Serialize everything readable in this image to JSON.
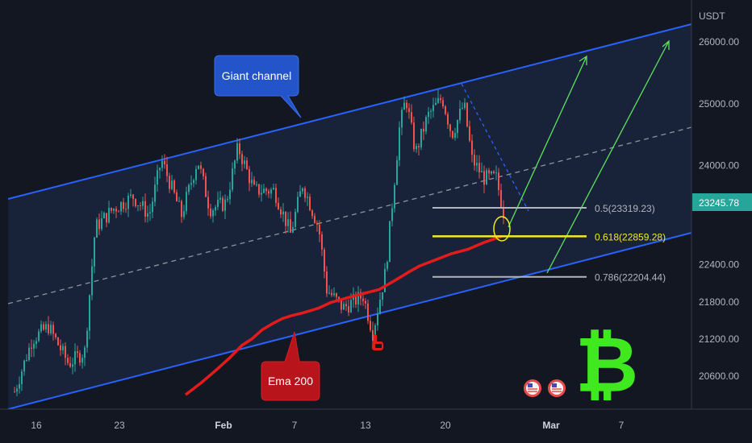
{
  "chart_data": {
    "type": "candlestick",
    "currency": "USDT",
    "ylim": [
      20200,
      26400
    ],
    "price_ticks": [
      "26000.00",
      "25000.00",
      "24000.00",
      "22400.00",
      "21800.00",
      "21200.00",
      "20600.00"
    ],
    "time_ticks": [
      {
        "label": "16",
        "bold": false
      },
      {
        "label": "23",
        "bold": false
      },
      {
        "label": "Feb",
        "bold": true
      },
      {
        "label": "7",
        "bold": false
      },
      {
        "label": "13",
        "bold": false
      },
      {
        "label": "20",
        "bold": false
      },
      {
        "label": "Mar",
        "bold": true
      },
      {
        "label": "7",
        "bold": false
      }
    ],
    "last_price": {
      "label": "23245.78",
      "value": 23245.78,
      "color": "#26a69a"
    },
    "fib_levels": [
      {
        "label": "0.5(23319.23)",
        "value": 23319.23,
        "color": "#b2b5be"
      },
      {
        "label": "0.618(22859.28)",
        "value": 22859.28,
        "color": "#f5eb1f"
      },
      {
        "label": "0.786(22204.44)",
        "value": 22204.44,
        "color": "#b2b5be"
      }
    ],
    "ema": {
      "label": "Ema 200",
      "color": "#e31b1b",
      "points": [
        [
          20300,
          20200
        ],
        [
          20500,
          20420
        ],
        [
          20700,
          20640
        ],
        [
          20900,
          20820
        ],
        [
          21100,
          21000
        ],
        [
          21200,
          21120
        ],
        [
          21350,
          21250
        ],
        [
          21450,
          21380
        ],
        [
          21530,
          21520
        ],
        [
          21580,
          21540
        ],
        [
          21620,
          21630
        ],
        [
          21700,
          21720
        ],
        [
          21790,
          21820
        ],
        [
          21900,
          21940
        ],
        [
          22000,
          22080
        ],
        [
          22150,
          22220
        ],
        [
          22270,
          22300
        ],
        [
          22380,
          22400
        ],
        [
          22480,
          22500
        ],
        [
          22580,
          22600
        ],
        [
          22650,
          22700
        ],
        [
          22760,
          22800
        ],
        [
          22859,
          22860
        ]
      ]
    },
    "channel": {
      "label": "Giant channel",
      "color": "#2962ff"
    },
    "annotations": {
      "colors": {
        "up_candle": "#26a69a",
        "down_candle": "#ef5350",
        "projection": "#5de35d",
        "bitcoin": "#40e81f"
      }
    },
    "icons": [
      "us-flag-event-icon",
      "us-flag-event-icon",
      "bitcoin-logo-icon",
      "pointing-hand-icon"
    ]
  }
}
